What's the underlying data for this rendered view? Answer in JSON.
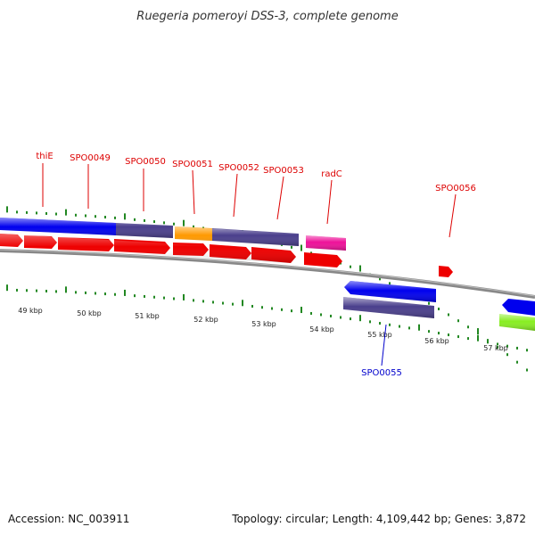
{
  "title": "Ruegeria pomeroyi DSS-3, complete genome",
  "footer": {
    "accession": "Accession: NC_003911",
    "summary": "Topology: circular; Length: 4,109,442 bp; Genes: 3,872"
  },
  "ticks": [
    "49 kbp",
    "50 kbp",
    "51 kbp",
    "52 kbp",
    "53 kbp",
    "54 kbp",
    "55 kbp",
    "56 kbp",
    "57 kbp"
  ],
  "gene_labels": [
    {
      "text": "thiE",
      "color": "#dd0000"
    },
    {
      "text": "SPO0049",
      "color": "#dd0000"
    },
    {
      "text": "SPO0050",
      "color": "#dd0000"
    },
    {
      "text": "SPO0051",
      "color": "#dd0000"
    },
    {
      "text": "SPO0052",
      "color": "#dd0000"
    },
    {
      "text": "SPO0053",
      "color": "#dd0000"
    },
    {
      "text": "radC",
      "color": "#dd0000"
    },
    {
      "text": "SPO0056",
      "color": "#dd0000"
    },
    {
      "text": "SPO0055",
      "color": "#0000cc"
    }
  ],
  "colors": {
    "forward_gene": "#ee0000",
    "reverse_cds": "#0000ee",
    "cog_purple": "#4a3f8c",
    "cog_orange": "#ff9900",
    "cog_pink": "#ee1199",
    "cog_green": "#88ee22",
    "backbone": "#888888",
    "tick_mark": "#228822"
  }
}
